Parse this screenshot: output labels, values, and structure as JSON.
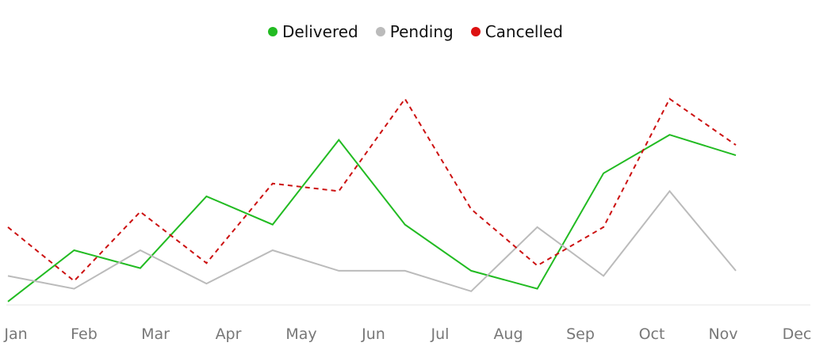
{
  "legend": [
    {
      "label": "Delivered",
      "color": "#22bb22"
    },
    {
      "label": "Pending",
      "color": "#bbbbbb"
    },
    {
      "label": "Cancelled",
      "color": "#dd1111"
    }
  ],
  "chart_data": {
    "type": "line",
    "title": "",
    "xlabel": "",
    "ylabel": "",
    "categories": [
      "Jan",
      "Feb",
      "Mar",
      "Apr",
      "May",
      "Jun",
      "Jul",
      "Aug",
      "Sep",
      "Oct",
      "Nov",
      "Dec"
    ],
    "ylim": [
      0,
      100
    ],
    "grid": false,
    "legend_position": "top-center",
    "series": [
      {
        "name": "Delivered",
        "color": "#22bb22",
        "style": "solid",
        "values": [
          1,
          21,
          14,
          42,
          31,
          64,
          31,
          13,
          6,
          51,
          66,
          58
        ]
      },
      {
        "name": "Pending",
        "color": "#bbbbbb",
        "style": "solid",
        "values": [
          11,
          6,
          21,
          8,
          21,
          13,
          13,
          5,
          30,
          11,
          44,
          13
        ]
      },
      {
        "name": "Cancelled",
        "color": "#cc1111",
        "style": "dashed",
        "values": [
          30,
          9,
          36,
          16,
          47,
          44,
          80,
          37,
          15,
          30,
          80,
          62
        ]
      }
    ]
  }
}
